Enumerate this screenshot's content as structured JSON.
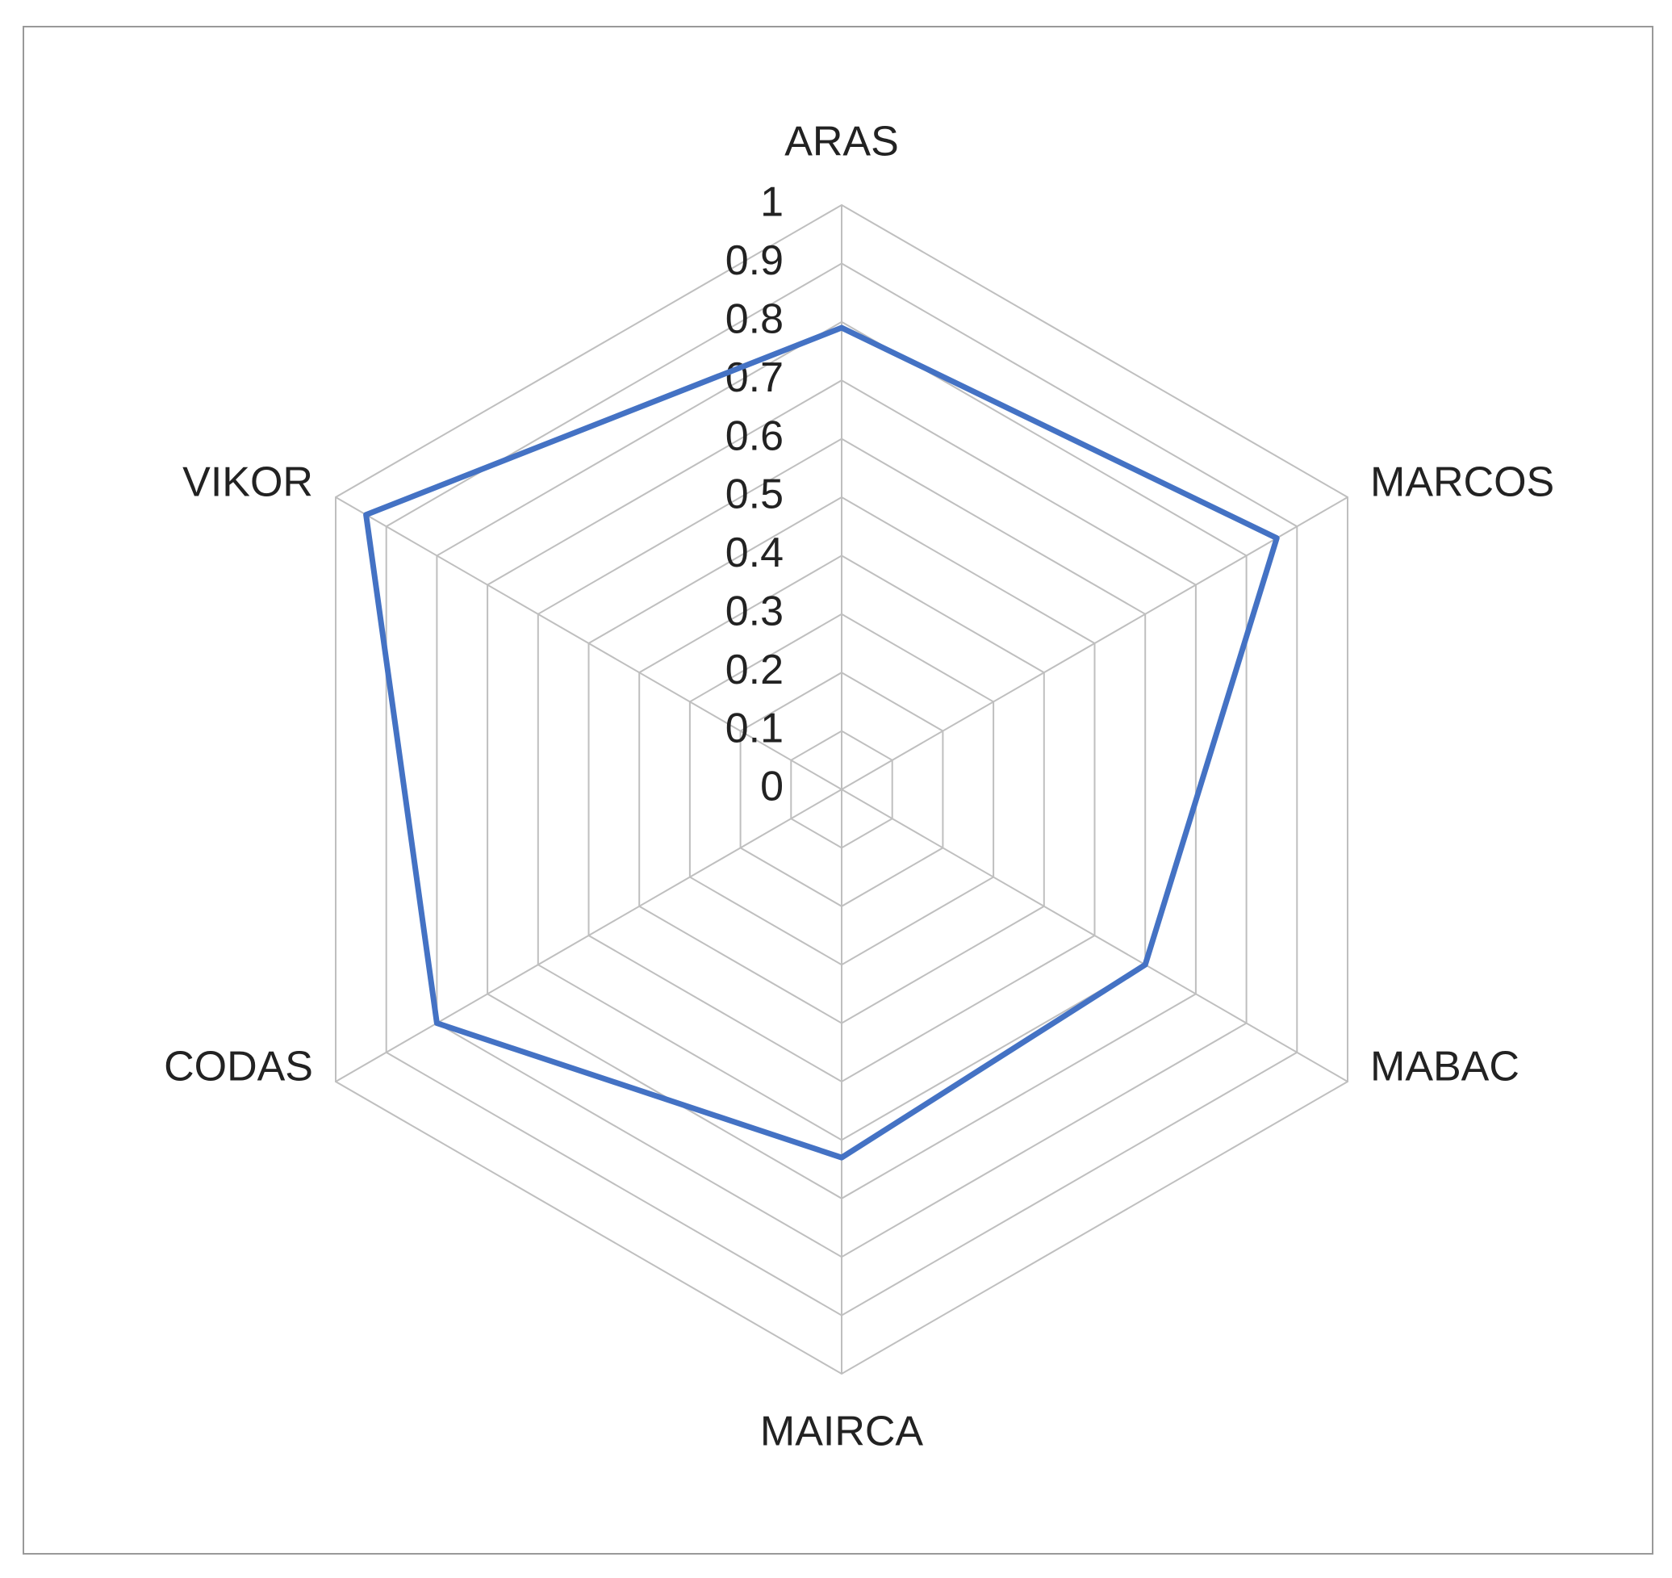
{
  "chart_data": {
    "type": "radar",
    "categories": [
      "ARAS",
      "MARCOS",
      "MABAC",
      "MAIRCA",
      "CODAS",
      "VIKOR"
    ],
    "series": [
      {
        "color": "#4472c4",
        "values": [
          0.79,
          0.86,
          0.6,
          0.63,
          0.8,
          0.94
        ]
      }
    ],
    "ylim": [
      0,
      1
    ],
    "yticks": [
      0,
      0.1,
      0.2,
      0.3,
      0.4,
      0.5,
      0.6,
      0.7,
      0.8,
      0.9,
      1
    ],
    "grid": true
  }
}
